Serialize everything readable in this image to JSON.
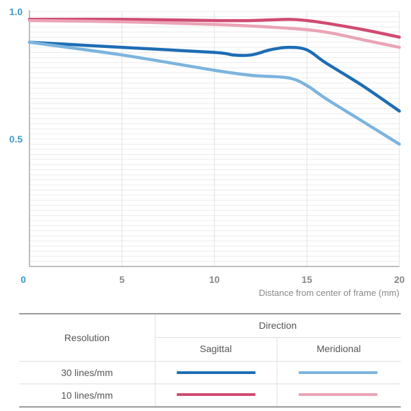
{
  "chart_data": {
    "type": "line",
    "title": "",
    "xlabel": "Distance from center of frame (mm)",
    "ylabel": "",
    "xlim": [
      0,
      20
    ],
    "ylim": [
      0,
      1.0
    ],
    "x_ticks": [
      0,
      5,
      10,
      15,
      20
    ],
    "x_tick_labels": [
      "0",
      "5",
      "10",
      "15",
      "20"
    ],
    "y_ticks": [
      0.5,
      1.0
    ],
    "y_tick_labels": [
      "0.5",
      "1.0"
    ],
    "grid": true,
    "series": [
      {
        "name": "10 lines/mm Sagittal",
        "color": "#d04b72",
        "x": [
          0,
          5,
          10,
          12,
          14,
          15,
          16,
          18,
          20
        ],
        "y": [
          0.97,
          0.97,
          0.965,
          0.965,
          0.97,
          0.965,
          0.955,
          0.93,
          0.9
        ]
      },
      {
        "name": "10 lines/mm Meridional",
        "color": "#eaa4b6",
        "x": [
          0,
          5,
          10,
          14,
          16,
          18,
          20
        ],
        "y": [
          0.965,
          0.96,
          0.95,
          0.935,
          0.92,
          0.89,
          0.86
        ]
      },
      {
        "name": "30 lines/mm Sagittal",
        "color": "#1e6db4",
        "x": [
          0,
          5,
          10,
          11,
          12,
          13,
          14,
          15,
          16,
          18,
          20
        ],
        "y": [
          0.88,
          0.86,
          0.84,
          0.83,
          0.83,
          0.85,
          0.86,
          0.85,
          0.8,
          0.71,
          0.61
        ]
      },
      {
        "name": "30 lines/mm Meridional",
        "color": "#7cb4de",
        "x": [
          0,
          5,
          10,
          12,
          14,
          15,
          16,
          18,
          20
        ],
        "y": [
          0.88,
          0.83,
          0.77,
          0.75,
          0.74,
          0.71,
          0.66,
          0.57,
          0.48
        ]
      }
    ]
  },
  "legend": {
    "resolution_header": "Resolution",
    "direction_header": "Direction",
    "sagittal": "Sagittal",
    "meridional": "Meridional",
    "rows": [
      {
        "label": "30 lines/mm",
        "sagittal_color": "#1e6db4",
        "meridional_color": "#7cb4de"
      },
      {
        "label": "10 lines/mm",
        "sagittal_color": "#d04b72",
        "meridional_color": "#eaa4b6"
      }
    ]
  }
}
